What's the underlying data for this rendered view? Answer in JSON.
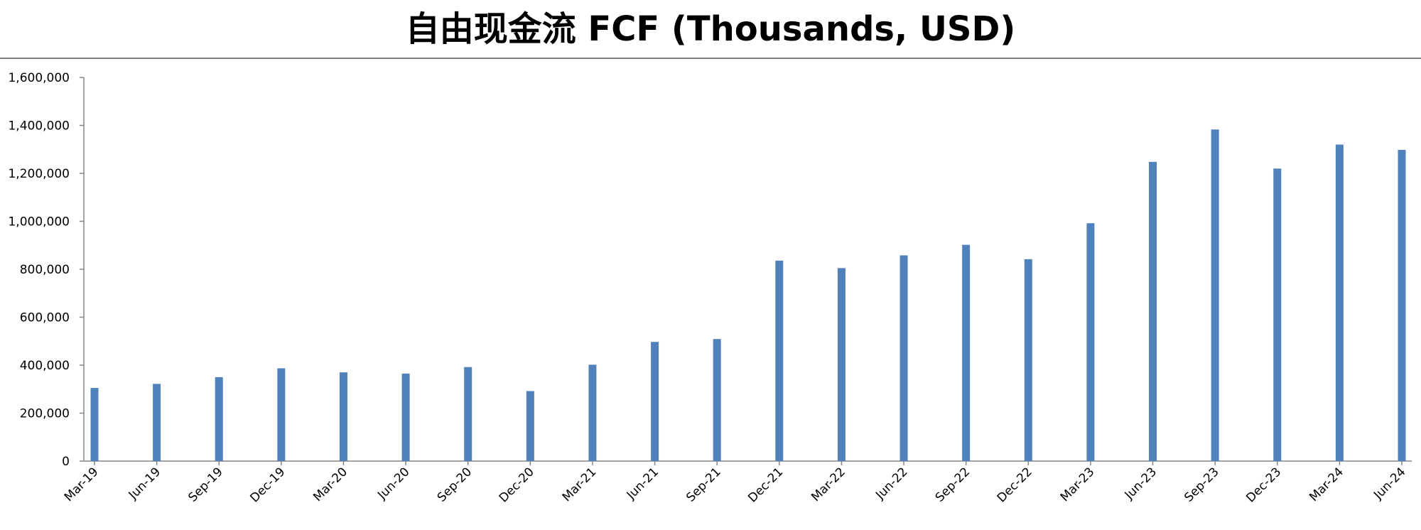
{
  "title": "自由现金流 FCF (Thousands, USD)",
  "chart_data": {
    "type": "bar",
    "title": "自由现金流 FCF (Thousands, USD)",
    "xlabel": "",
    "ylabel": "",
    "ylim": [
      0,
      1600000
    ],
    "yticks": [
      0,
      200000,
      400000,
      600000,
      800000,
      1000000,
      1200000,
      1400000,
      1600000
    ],
    "ytick_labels": [
      "0",
      "200,000",
      "400,000",
      "600,000",
      "800,000",
      "1,000,000",
      "1,200,000",
      "1,400,000",
      "1,600,000"
    ],
    "grid": false,
    "bar_color": "#4f81bd",
    "categories": [
      "Mar-19",
      "Jun-19",
      "Sep-19",
      "Dec-19",
      "Mar-20",
      "Jun-20",
      "Sep-20",
      "Dec-20",
      "Mar-21",
      "Jun-21",
      "Sep-21",
      "Dec-21",
      "Mar-22",
      "Jun-22",
      "Sep-22",
      "Dec-22",
      "Mar-23",
      "Jun-23",
      "Sep-23",
      "Dec-23",
      "Mar-24",
      "Jun-24"
    ],
    "values": [
      305000,
      322000,
      350000,
      387000,
      370000,
      365000,
      392000,
      292000,
      402000,
      497000,
      509000,
      836000,
      805000,
      858000,
      902000,
      842000,
      992000,
      1248000,
      1383000,
      1220000,
      1320000,
      1298000
    ]
  }
}
